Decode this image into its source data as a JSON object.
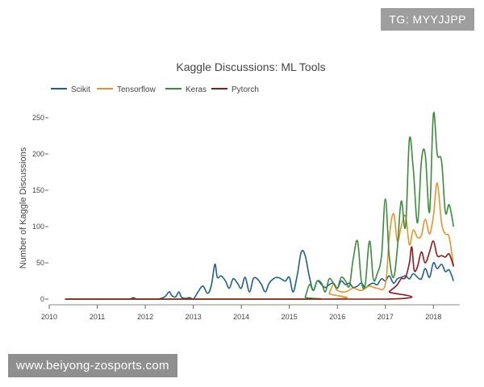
{
  "watermark": {
    "tg": "TG: MYYJJPP",
    "site": "www.beiyong-zosports.com"
  },
  "chart_data": {
    "type": "line",
    "title": "Kaggle Discussions: ML Tools",
    "xlabel": "",
    "ylabel": "Number of Kaggle Discussions",
    "xlim": [
      2010,
      2018.55
    ],
    "ylim": [
      0,
      260
    ],
    "x_ticks": [
      "2010",
      "2011",
      "2012",
      "2013",
      "2014",
      "2015",
      "2016",
      "2017",
      "2018"
    ],
    "y_ticks": [
      "0",
      "50",
      "100",
      "150",
      "200",
      "250"
    ],
    "legend_position": "top-left",
    "grid": false,
    "series": [
      {
        "name": "Scikit",
        "color": "#1f5f8b",
        "x": [
          2010.33,
          2011.5,
          2011.67,
          2011.75,
          2011.83,
          2012.0,
          2012.25,
          2012.4,
          2012.5,
          2012.55,
          2012.63,
          2012.7,
          2012.75,
          2012.83,
          2012.92,
          2013.0,
          2013.1,
          2013.2,
          2013.3,
          2013.38,
          2013.45,
          2013.5,
          2013.58,
          2013.67,
          2013.75,
          2013.83,
          2013.92,
          2014.0,
          2014.08,
          2014.17,
          2014.25,
          2014.33,
          2014.42,
          2014.5,
          2014.58,
          2014.67,
          2014.75,
          2014.83,
          2014.92,
          2015.0,
          2015.08,
          2015.17,
          2015.25,
          2015.33,
          2015.42,
          2015.5,
          2015.58,
          2015.67,
          2015.75,
          2015.83,
          2015.92,
          2016.0,
          2016.08,
          2016.17,
          2016.25,
          2016.33,
          2016.42,
          2016.5,
          2016.58,
          2016.67,
          2016.75,
          2016.83,
          2016.92,
          2017.0,
          2017.08,
          2017.17,
          2017.25,
          2017.33,
          2017.42,
          2017.5,
          2017.58,
          2017.67,
          2017.75,
          2017.83,
          2017.92,
          2018.0,
          2018.08,
          2018.17,
          2018.25,
          2018.33,
          2018.42
        ],
        "values": [
          0,
          0,
          0,
          2,
          0,
          0,
          0,
          3,
          10,
          5,
          3,
          10,
          3,
          1,
          2,
          0,
          10,
          18,
          8,
          20,
          48,
          30,
          32,
          25,
          15,
          28,
          22,
          15,
          30,
          10,
          28,
          28,
          20,
          10,
          22,
          28,
          30,
          28,
          25,
          30,
          10,
          35,
          65,
          60,
          30,
          12,
          25,
          20,
          16,
          20,
          22,
          15,
          25,
          20,
          22,
          16,
          18,
          22,
          16,
          20,
          22,
          20,
          28,
          25,
          32,
          22,
          28,
          30,
          32,
          28,
          35,
          30,
          28,
          42,
          30,
          50,
          42,
          48,
          38,
          40,
          25
        ]
      },
      {
        "name": "Tensorflow",
        "color": "#e0962b",
        "x": [
          2010.33,
          2015.75,
          2015.83,
          2015.92,
          2016.0,
          2016.17,
          2016.33,
          2016.5,
          2016.67,
          2016.83,
          2017.0,
          2017.08,
          2017.17,
          2017.25,
          2017.33,
          2017.42,
          2017.5,
          2017.58,
          2017.67,
          2017.75,
          2017.83,
          2017.92,
          2018.0,
          2018.08,
          2018.17,
          2018.25,
          2018.33,
          2018.42
        ],
        "values": [
          0,
          0,
          8,
          20,
          12,
          10,
          15,
          12,
          18,
          15,
          20,
          85,
          118,
          80,
          100,
          115,
          75,
          95,
          85,
          88,
          110,
          90,
          115,
          160,
          105,
          90,
          85,
          45
        ]
      },
      {
        "name": "Keras",
        "color": "#3a8c3a",
        "x": [
          2010.33,
          2015.25,
          2015.33,
          2015.42,
          2015.5,
          2015.58,
          2015.67,
          2015.75,
          2015.83,
          2015.92,
          2016.0,
          2016.08,
          2016.17,
          2016.25,
          2016.33,
          2016.42,
          2016.5,
          2016.58,
          2016.67,
          2016.75,
          2016.83,
          2016.92,
          2017.0,
          2017.08,
          2017.17,
          2017.25,
          2017.33,
          2017.42,
          2017.5,
          2017.58,
          2017.67,
          2017.75,
          2017.83,
          2017.92,
          2018.0,
          2018.08,
          2018.17,
          2018.25,
          2018.33,
          2018.42
        ],
        "values": [
          0,
          0,
          3,
          20,
          12,
          25,
          22,
          10,
          28,
          22,
          15,
          30,
          25,
          18,
          55,
          80,
          25,
          20,
          80,
          28,
          35,
          60,
          138,
          60,
          30,
          70,
          135,
          100,
          220,
          180,
          105,
          190,
          200,
          120,
          255,
          200,
          190,
          120,
          130,
          100
        ]
      },
      {
        "name": "Pytorch",
        "color": "#8b1a1a",
        "x": [
          2010.33,
          2017.0,
          2017.08,
          2017.17,
          2017.25,
          2017.33,
          2017.42,
          2017.5,
          2017.55,
          2017.6,
          2017.67,
          2017.75,
          2017.83,
          2017.92,
          2018.0,
          2018.08,
          2018.17,
          2018.25,
          2018.33,
          2018.42
        ],
        "values": [
          0,
          0,
          10,
          15,
          20,
          28,
          30,
          50,
          72,
          40,
          45,
          65,
          50,
          65,
          80,
          60,
          60,
          58,
          62,
          45
        ]
      }
    ]
  }
}
